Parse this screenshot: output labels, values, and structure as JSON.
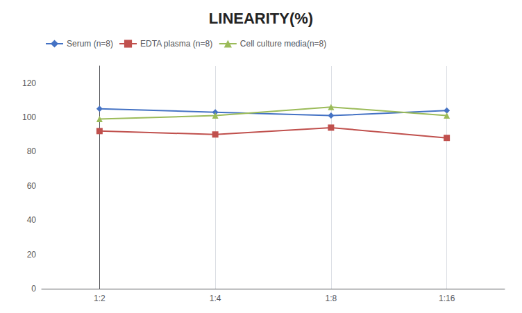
{
  "chart_data": {
    "type": "line",
    "title": "LINEARITY(%)",
    "categories": [
      "1:2",
      "1:4",
      "1:8",
      "1:16"
    ],
    "series": [
      {
        "name": "Serum (n=8)",
        "color": "#4472C4",
        "marker": "diamond",
        "values": [
          105,
          103,
          101,
          104
        ]
      },
      {
        "name": "EDTA plasma (n=8)",
        "color": "#C0504D",
        "marker": "square",
        "values": [
          92,
          90,
          94,
          88
        ]
      },
      {
        "name": "Cell culture media(n=8)",
        "color": "#9BBB59",
        "marker": "triangle",
        "values": [
          99,
          101,
          106,
          101
        ]
      }
    ],
    "ylim": [
      0,
      130
    ],
    "yticks": [
      0,
      20,
      40,
      60,
      80,
      100,
      120
    ],
    "grid": "x",
    "legend": "upper left"
  }
}
